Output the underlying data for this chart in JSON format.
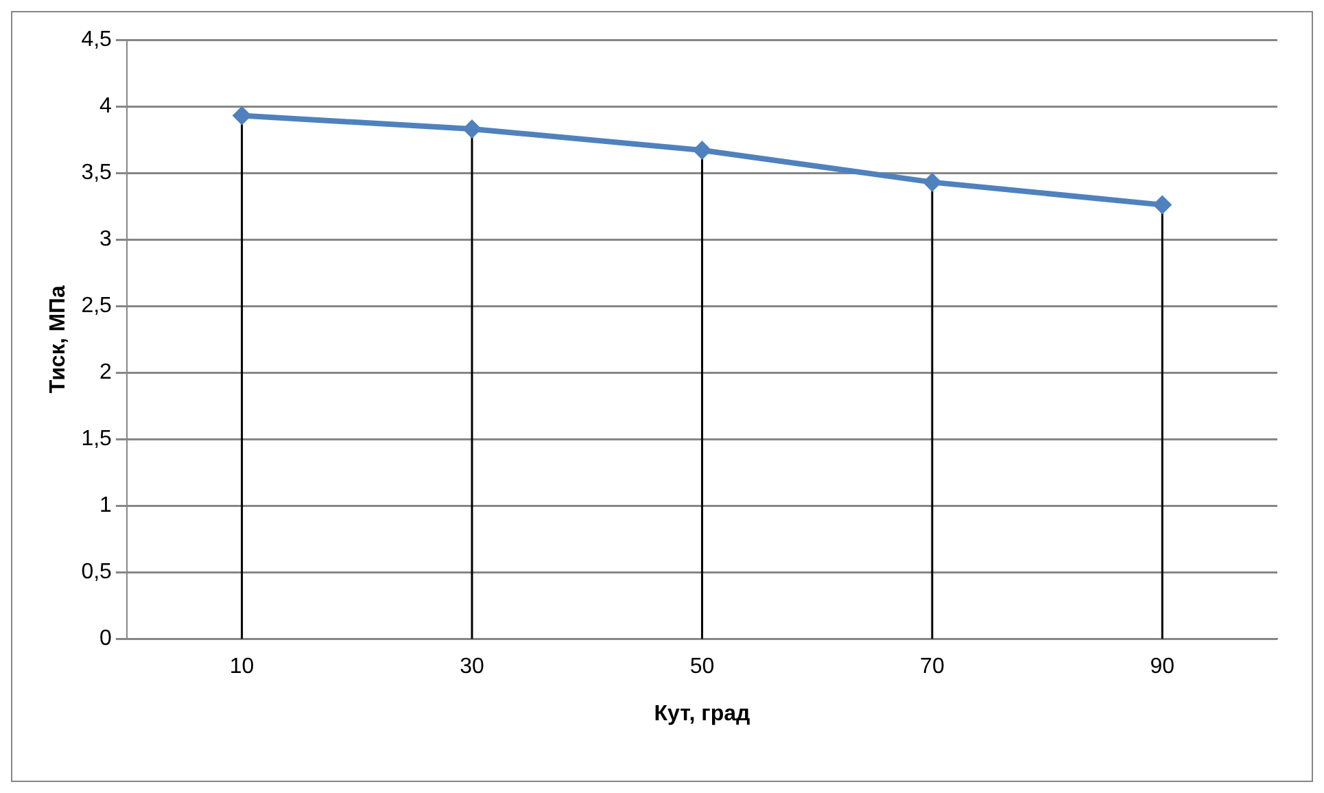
{
  "chart_data": {
    "type": "line",
    "xlabel": "Кут, град",
    "ylabel": "Тиск, МПа",
    "categories": [
      "10",
      "30",
      "50",
      "70",
      "90"
    ],
    "series": [
      {
        "color": "#4f81bd",
        "values": [
          3.93,
          3.83,
          3.67,
          3.43,
          3.26
        ]
      }
    ],
    "ylim": [
      0,
      4.5
    ],
    "yticks": [
      {
        "value": 0,
        "label": "0"
      },
      {
        "value": 0.5,
        "label": "0,5"
      },
      {
        "value": 1,
        "label": "1"
      },
      {
        "value": 1.5,
        "label": "1,5"
      },
      {
        "value": 2,
        "label": "2"
      },
      {
        "value": 2.5,
        "label": "2,5"
      },
      {
        "value": 3,
        "label": "3"
      },
      {
        "value": 3.5,
        "label": "3,5"
      },
      {
        "value": 4,
        "label": "4"
      },
      {
        "value": 4.5,
        "label": "4,5"
      }
    ],
    "grid": true,
    "legend": false,
    "marker": "diamond",
    "line_style": "solid"
  }
}
